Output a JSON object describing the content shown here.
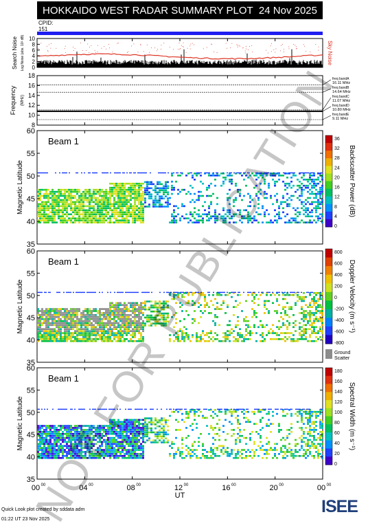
{
  "header": {
    "title": "HOKKAIDO WEST RADAR SUMMARY PLOT",
    "date": "24 Nov 2025",
    "cpid_label": "CPID:",
    "cpid_value": "151"
  },
  "colors": {
    "cpid_bar": "#1e1ef0",
    "noise_red": "#dd3322",
    "sky_noise_label": "#dd3322"
  },
  "noise_panel": {
    "ylabel_main": "Search Noise",
    "ylabel_sub": "Log Noise (abs. 10² dB)",
    "right_label": "Sky Noise",
    "yticks": [
      "0",
      "2",
      "4",
      "6",
      "8",
      "10"
    ],
    "ylim": [
      0,
      10
    ]
  },
  "freq_panel": {
    "ylabel": "Frequency",
    "ylabel_unit": "(MHz)",
    "yticks": [
      "8",
      "10",
      "12",
      "14",
      "16",
      "18"
    ],
    "ylim": [
      8,
      18
    ],
    "bands": [
      {
        "name": "freq bandA",
        "value": "16.11 MHz",
        "mhz": 16.11
      },
      {
        "name": "freq bandB",
        "value": "14.64 MHz",
        "mhz": 14.64
      },
      {
        "name": "freq bandC",
        "value": "11.07 MHz",
        "mhz": 11.07
      },
      {
        "name": "freq bandD",
        "value": "10.80 MHz",
        "mhz": 10.8
      },
      {
        "name": "freq bandE",
        "value": "9.11 MHz",
        "mhz": 9.11
      }
    ]
  },
  "chart_data": [
    {
      "type": "heatmap",
      "label": "Beam  1",
      "ylabel": "Magnetic Latitude",
      "ylim": [
        35,
        60
      ],
      "yticks": [
        "35",
        "40",
        "45",
        "50",
        "55",
        "60"
      ],
      "colorbar_label": "Backscatter Power (dB)",
      "colorbar_ticks": [
        "0",
        "4",
        "8",
        "12",
        "16",
        "20",
        "24",
        "28",
        "32",
        "36"
      ],
      "colorbar_range": [
        0,
        36
      ]
    },
    {
      "type": "heatmap",
      "label": "Beam  1",
      "ylabel": "Magnetic Latitude",
      "ylim": [
        35,
        60
      ],
      "yticks": [
        "35",
        "40",
        "45",
        "50",
        "55",
        "60"
      ],
      "colorbar_label": "Doppler Velocity (m s⁻¹)",
      "colorbar_ticks": [
        "800",
        "600",
        "400",
        "200",
        "0",
        "-200",
        "-400",
        "-600",
        "-800"
      ],
      "colorbar_range": [
        -800,
        800
      ],
      "ground_scatter_label": "Ground Scatter"
    },
    {
      "type": "heatmap",
      "label": "Beam  1",
      "ylabel": "Magnetic Latitude",
      "ylim": [
        35,
        60
      ],
      "yticks": [
        "35",
        "40",
        "45",
        "50",
        "55",
        "60"
      ],
      "colorbar_label": "Spectral Width (m s⁻¹)",
      "colorbar_ticks": [
        "180",
        "160",
        "140",
        "120",
        "100",
        "80",
        "60",
        "40",
        "20",
        "0"
      ],
      "colorbar_range": [
        0,
        180
      ]
    }
  ],
  "x_axis": {
    "label": "UT",
    "ticks": [
      {
        "h": "00",
        "m": "00"
      },
      {
        "h": "04",
        "m": "00"
      },
      {
        "h": "08",
        "m": "00"
      },
      {
        "h": "12",
        "m": "00"
      },
      {
        "h": "16",
        "m": "00"
      },
      {
        "h": "20",
        "m": "00"
      },
      {
        "h": "00",
        "m": "00"
      }
    ],
    "range_hours": [
      0,
      24
    ]
  },
  "footer": {
    "credit": "Quick Look plot created by sddata adm",
    "timestamp": "01:22 UT 23 Nov 2025"
  },
  "logo_text": "ISEE",
  "watermark": "NOT FOR PUBLICATION"
}
